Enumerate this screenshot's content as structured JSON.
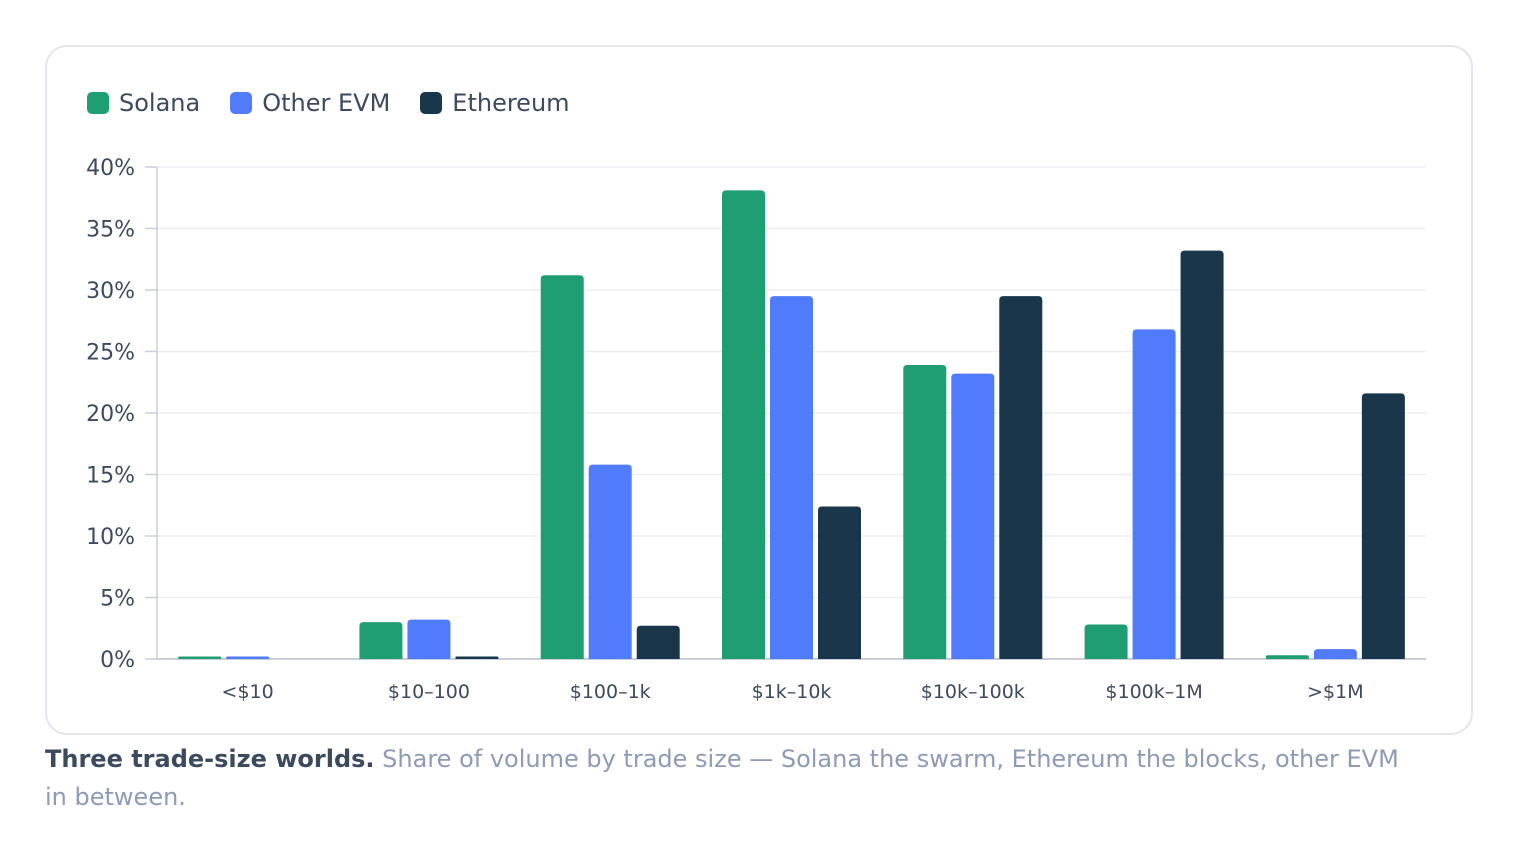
{
  "legend": {
    "items": [
      {
        "label": "Solana",
        "color": "#1f9e74"
      },
      {
        "label": "Other EVM",
        "color": "#507cfc"
      },
      {
        "label": "Ethereum",
        "color": "#19364b"
      }
    ]
  },
  "caption": {
    "lead": "Three trade-size worlds.",
    "text": " Share of volume by trade size — Solana the swarm, Ethereum the blocks, other EVM in between."
  },
  "chart_data": {
    "type": "bar",
    "categories": [
      "<$10",
      "$10–100",
      "$100–1k",
      "$1k–10k",
      "$10k–100k",
      "$100k–1M",
      ">$1M"
    ],
    "series": [
      {
        "name": "Solana",
        "color": "#1f9e74",
        "values": [
          0.2,
          3.0,
          31.2,
          38.1,
          23.9,
          2.8,
          0.3
        ]
      },
      {
        "name": "Other EVM",
        "color": "#507cfc",
        "values": [
          0.2,
          3.2,
          15.8,
          29.5,
          23.2,
          26.8,
          0.8
        ]
      },
      {
        "name": "Ethereum",
        "color": "#19364b",
        "values": [
          0.0,
          0.2,
          2.7,
          12.4,
          29.5,
          33.2,
          21.6
        ]
      }
    ],
    "ylim": [
      0,
      40
    ],
    "yticks": [
      0,
      5,
      10,
      15,
      20,
      25,
      30,
      35,
      40
    ],
    "ytick_labels": [
      "0%",
      "5%",
      "10%",
      "15%",
      "20%",
      "25%",
      "30%",
      "35%",
      "40%"
    ],
    "grid": true,
    "legend_position": "top-left"
  }
}
